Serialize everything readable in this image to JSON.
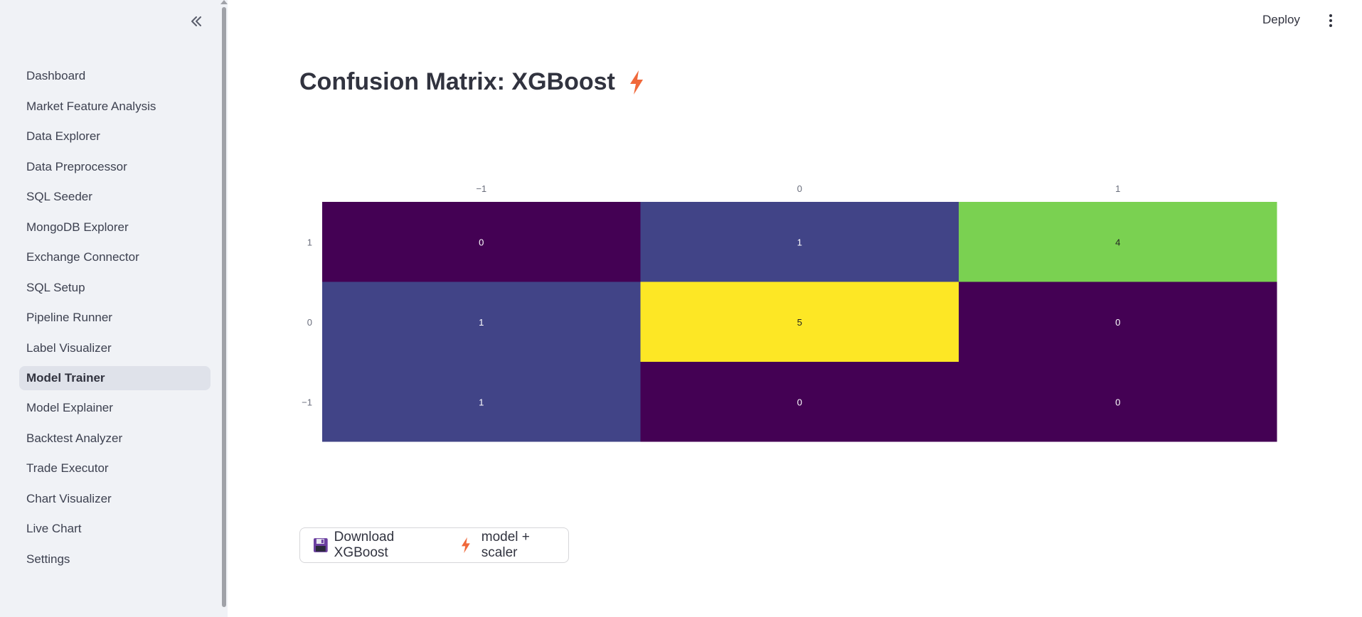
{
  "sidebar": {
    "items": [
      {
        "label": "Dashboard"
      },
      {
        "label": "Market Feature Analysis"
      },
      {
        "label": "Data Explorer"
      },
      {
        "label": "Data Preprocessor"
      },
      {
        "label": "SQL Seeder"
      },
      {
        "label": "MongoDB Explorer"
      },
      {
        "label": "Exchange Connector"
      },
      {
        "label": "SQL Setup"
      },
      {
        "label": "Pipeline Runner"
      },
      {
        "label": "Label Visualizer"
      },
      {
        "label": "Model Trainer",
        "active": true
      },
      {
        "label": "Model Explainer"
      },
      {
        "label": "Backtest Analyzer"
      },
      {
        "label": "Trade Executor"
      },
      {
        "label": "Chart Visualizer"
      },
      {
        "label": "Live Chart"
      },
      {
        "label": "Settings"
      }
    ]
  },
  "topbar": {
    "deploy_label": "Deploy"
  },
  "main": {
    "title": "Confusion Matrix: XGBoost",
    "title_icon": "lightning-bolt-icon",
    "download_button": {
      "label_prefix": "Download XGBoost",
      "label_suffix": "model + scaler",
      "icons": [
        "floppy-disk-icon",
        "lightning-bolt-icon"
      ]
    }
  },
  "chart_data": {
    "type": "heatmap",
    "x_categories": [
      "−1",
      "0",
      "1"
    ],
    "y_categories": [
      "1",
      "0",
      "−1"
    ],
    "values": [
      [
        0,
        1,
        4
      ],
      [
        1,
        5,
        0
      ],
      [
        1,
        0,
        0
      ]
    ],
    "colorscale": "viridis",
    "zrange": [
      0,
      5
    ]
  },
  "colors": {
    "accent_bolt": "#f0683a",
    "sidebar_bg": "#f0f2f6"
  }
}
